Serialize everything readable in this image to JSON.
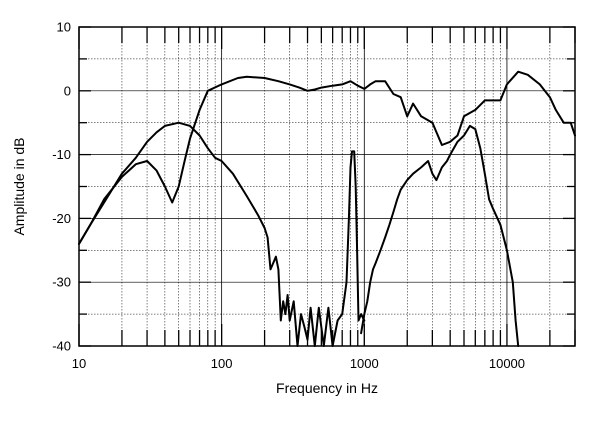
{
  "chart_data": {
    "type": "line",
    "xlabel": "Frequency in Hz",
    "ylabel": "Amplitude in dB",
    "x_scale": "log",
    "xlim": [
      10,
      30000
    ],
    "ylim": [
      -40,
      10
    ],
    "grid": true,
    "legend": "none",
    "x_ticks": [
      10,
      100,
      1000,
      10000
    ],
    "x_tick_labels": [
      "10",
      "100",
      "1000",
      "10000"
    ],
    "y_ticks": [
      10,
      0,
      -10,
      -20,
      -30,
      -40
    ],
    "y_tick_labels": [
      "10",
      "0",
      "-10",
      "-20",
      "-30",
      "-40"
    ],
    "line_color": "#000000",
    "series": [
      {
        "points": [
          [
            10,
            -24
          ],
          [
            12,
            -21
          ],
          [
            15,
            -17
          ],
          [
            20,
            -13.5
          ],
          [
            25,
            -11.5
          ],
          [
            30,
            -11
          ],
          [
            35,
            -12.5
          ],
          [
            40,
            -15
          ],
          [
            45,
            -17.5
          ],
          [
            50,
            -15
          ],
          [
            55,
            -11
          ],
          [
            60,
            -7.5
          ],
          [
            70,
            -3
          ],
          [
            80,
            0
          ],
          [
            100,
            1
          ],
          [
            130,
            2
          ],
          [
            150,
            2.2
          ],
          [
            200,
            2
          ],
          [
            250,
            1.5
          ],
          [
            300,
            1
          ],
          [
            350,
            0.5
          ],
          [
            400,
            0
          ],
          [
            450,
            0.2
          ],
          [
            500,
            0.5
          ],
          [
            600,
            0.8
          ],
          [
            700,
            1
          ],
          [
            800,
            1.5
          ],
          [
            900,
            0.8
          ],
          [
            1000,
            0.3
          ],
          [
            1100,
            1
          ],
          [
            1200,
            1.5
          ],
          [
            1400,
            1.5
          ],
          [
            1600,
            -0.5
          ],
          [
            1800,
            -1
          ],
          [
            2000,
            -4
          ],
          [
            2200,
            -2
          ],
          [
            2500,
            -4
          ],
          [
            3000,
            -5
          ],
          [
            3500,
            -8.5
          ],
          [
            4000,
            -8
          ],
          [
            4500,
            -7
          ],
          [
            5000,
            -4
          ],
          [
            6000,
            -3
          ],
          [
            7000,
            -1.5
          ],
          [
            8000,
            -1.5
          ],
          [
            9000,
            -1.5
          ],
          [
            10000,
            1
          ],
          [
            12000,
            3
          ],
          [
            14000,
            2.5
          ],
          [
            17000,
            1
          ],
          [
            20000,
            -1
          ],
          [
            22000,
            -3
          ],
          [
            25000,
            -5
          ],
          [
            28000,
            -5
          ],
          [
            30000,
            -7
          ]
        ]
      },
      {
        "points": [
          [
            10,
            -24
          ],
          [
            12,
            -21
          ],
          [
            15,
            -17.5
          ],
          [
            20,
            -13
          ],
          [
            25,
            -10.5
          ],
          [
            30,
            -8
          ],
          [
            35,
            -6.5
          ],
          [
            40,
            -5.5
          ],
          [
            50,
            -5
          ],
          [
            60,
            -5.5
          ],
          [
            70,
            -7
          ],
          [
            80,
            -9
          ],
          [
            90,
            -10.5
          ],
          [
            100,
            -11
          ],
          [
            120,
            -13
          ],
          [
            150,
            -16.5
          ],
          [
            180,
            -19.5
          ],
          [
            200,
            -21.5
          ],
          [
            210,
            -23
          ],
          [
            220,
            -28
          ],
          [
            230,
            -27
          ],
          [
            240,
            -26
          ],
          [
            250,
            -28
          ],
          [
            260,
            -36
          ],
          [
            270,
            -33
          ],
          [
            280,
            -35
          ],
          [
            290,
            -32
          ],
          [
            300,
            -36
          ],
          [
            320,
            -33
          ],
          [
            340,
            -40
          ],
          [
            360,
            -35
          ],
          [
            380,
            -37
          ],
          [
            400,
            -39
          ],
          [
            420,
            -34
          ],
          [
            450,
            -40
          ],
          [
            480,
            -34
          ],
          [
            520,
            -40
          ],
          [
            560,
            -34
          ],
          [
            600,
            -40
          ],
          [
            650,
            -36
          ],
          [
            700,
            -35
          ],
          [
            750,
            -30
          ],
          [
            780,
            -20
          ],
          [
            800,
            -12
          ],
          [
            820,
            -9.5
          ],
          [
            850,
            -9.5
          ],
          [
            870,
            -15
          ],
          [
            890,
            -25
          ],
          [
            910,
            -36
          ],
          [
            950,
            -35
          ],
          [
            1000,
            -36
          ]
        ]
      },
      {
        "points": [
          [
            950,
            -38
          ],
          [
            1000,
            -35
          ],
          [
            1050,
            -33
          ],
          [
            1100,
            -30
          ],
          [
            1150,
            -28
          ],
          [
            1200,
            -27
          ],
          [
            1300,
            -25
          ],
          [
            1400,
            -23
          ],
          [
            1500,
            -21
          ],
          [
            1600,
            -19
          ],
          [
            1700,
            -17
          ],
          [
            1800,
            -15.5
          ],
          [
            2000,
            -14
          ],
          [
            2200,
            -13
          ],
          [
            2500,
            -12
          ],
          [
            2800,
            -11
          ],
          [
            3000,
            -13
          ],
          [
            3200,
            -14
          ],
          [
            3500,
            -12
          ],
          [
            3800,
            -11
          ],
          [
            4000,
            -10
          ],
          [
            4500,
            -8
          ],
          [
            5000,
            -7
          ],
          [
            5500,
            -5.5
          ],
          [
            6000,
            -6
          ],
          [
            6500,
            -9
          ],
          [
            7000,
            -13
          ],
          [
            7500,
            -17
          ],
          [
            8000,
            -18.5
          ],
          [
            9000,
            -21
          ],
          [
            10000,
            -25
          ],
          [
            11000,
            -30
          ],
          [
            11500,
            -36
          ],
          [
            12000,
            -40
          ]
        ]
      }
    ]
  }
}
